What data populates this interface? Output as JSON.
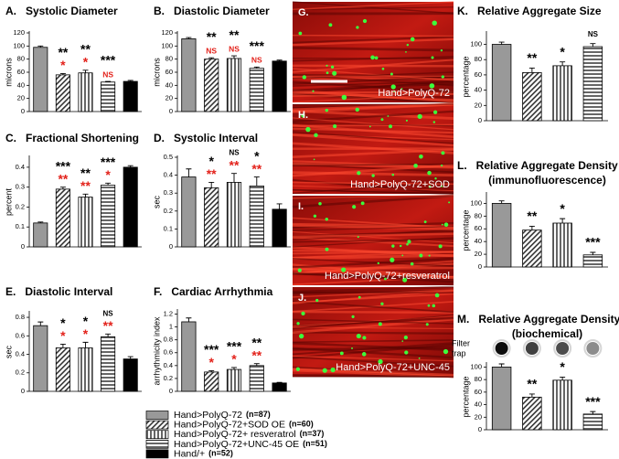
{
  "legend": [
    {
      "name": "Hand>PolyQ-72",
      "n": "(n=87)",
      "color": "#999999",
      "pattern": "solid"
    },
    {
      "name": "Hand>PolyQ-72+SOD  OE",
      "n": "(n=60)",
      "color": "#333333",
      "pattern": "diagonal"
    },
    {
      "name": "Hand>PolyQ-72+ resveratrol",
      "n": "(n=37)",
      "color": "#666666",
      "pattern": "vertical"
    },
    {
      "name": "Hand>PolyQ-72+UNC-45 OE",
      "n": "(n=51)",
      "color": "#666666",
      "pattern": "horizontal"
    },
    {
      "name": "Hand/+",
      "n": "(n=52)",
      "color": "#000000",
      "pattern": "solid"
    }
  ],
  "images": [
    {
      "letter": "G.",
      "label": "Hand>PolyQ-72"
    },
    {
      "letter": "H.",
      "label": "Hand>PolyQ-72+SOD"
    },
    {
      "letter": "I.",
      "label": "Hand>PolyQ-72+resveratrol"
    },
    {
      "letter": "J.",
      "label": "Hand>PolyQ-72+UNC-45"
    }
  ],
  "chart_data": [
    {
      "type": "bar",
      "letter": "A.",
      "title": "Systolic Diameter",
      "ylabel": "microns",
      "ylim": [
        0,
        120
      ],
      "yticks": [
        0,
        20,
        40,
        60,
        80,
        100,
        120
      ],
      "values": [
        98,
        56,
        59,
        45,
        46
      ],
      "errors": [
        2,
        2,
        4,
        1,
        1.5
      ],
      "sig_black": [
        null,
        "**",
        "**",
        "***",
        null
      ],
      "sig_red": [
        null,
        "*",
        "*",
        "NS",
        null
      ]
    },
    {
      "type": "bar",
      "letter": "B.",
      "title": "Diastolic Diameter",
      "ylabel": "microns",
      "ylim": [
        0,
        120
      ],
      "yticks": [
        0,
        20,
        40,
        60,
        80,
        100,
        120
      ],
      "values": [
        111,
        80,
        81,
        66,
        77
      ],
      "errors": [
        2,
        2,
        4,
        2,
        1.5
      ],
      "sig_black": [
        null,
        "**",
        "**",
        "***",
        null
      ],
      "sig_red": [
        null,
        "NS",
        "NS",
        "NS",
        null
      ]
    },
    {
      "type": "bar",
      "letter": "C.",
      "title": "Fractional Shortening",
      "ylabel": "percent",
      "ylim": [
        0,
        0.45
      ],
      "yticks": [
        0,
        0.1,
        0.2,
        0.3,
        0.4
      ],
      "values": [
        0.12,
        0.29,
        0.25,
        0.31,
        0.4
      ],
      "errors": [
        0.005,
        0.01,
        0.015,
        0.01,
        0.008
      ],
      "sig_black": [
        null,
        "***",
        "**",
        "***",
        null
      ],
      "sig_red": [
        null,
        "**",
        "**",
        "*",
        null
      ]
    },
    {
      "type": "bar",
      "letter": "D.",
      "title": "Systolic Interval",
      "ylabel": "sec",
      "ylim": [
        0,
        0.5
      ],
      "yticks": [
        0,
        0.1,
        0.2,
        0.3,
        0.4,
        0.5
      ],
      "values": [
        0.39,
        0.33,
        0.36,
        0.34,
        0.21
      ],
      "errors": [
        0.045,
        0.03,
        0.05,
        0.05,
        0.03
      ],
      "sig_black": [
        null,
        "*",
        "NS",
        "*",
        null
      ],
      "sig_red": [
        null,
        "**",
        "**",
        "**",
        null
      ]
    },
    {
      "type": "bar",
      "letter": "E.",
      "title": "Diastolic Interval",
      "ylabel": "sec",
      "ylim": [
        0,
        0.85
      ],
      "yticks": [
        0,
        0.2,
        0.4,
        0.6,
        0.8
      ],
      "values": [
        0.71,
        0.47,
        0.47,
        0.59,
        0.35
      ],
      "errors": [
        0.04,
        0.04,
        0.06,
        0.03,
        0.025
      ],
      "sig_black": [
        null,
        "*",
        "*",
        "NS",
        null
      ],
      "sig_red": [
        null,
        "*",
        "*",
        "**",
        null
      ]
    },
    {
      "type": "bar",
      "letter": "F.",
      "title": "Cardiac Arrhythmia",
      "ylabel": "arrhythmicity index",
      "ylim": [
        0,
        1.25
      ],
      "yticks": [
        0,
        0.2,
        0.4,
        0.6,
        0.8,
        1,
        1.2
      ],
      "values": [
        1.08,
        0.3,
        0.34,
        0.4,
        0.13
      ],
      "errors": [
        0.06,
        0.02,
        0.03,
        0.03,
        0.01
      ],
      "sig_black": [
        null,
        "***",
        "***",
        "**",
        null
      ],
      "sig_red": [
        null,
        "*",
        "*",
        "**",
        null
      ]
    },
    {
      "type": "bar",
      "letter": "K.",
      "title": "Relative Aggregate Size",
      "ylabel": "percentage",
      "ylim": [
        0,
        115
      ],
      "yticks": [
        0,
        20,
        40,
        60,
        80,
        100
      ],
      "values": [
        100,
        63,
        72,
        97
      ],
      "errors": [
        3,
        6,
        5,
        4
      ],
      "sig_black": [
        null,
        "**",
        "*",
        "NS"
      ]
    },
    {
      "type": "bar",
      "letter": "L.",
      "title": "Relative Aggregate Density",
      "subtitle": "(immunofluorescence)",
      "ylabel": "percentage",
      "ylim": [
        0,
        115
      ],
      "yticks": [
        0,
        20,
        40,
        60,
        80,
        100
      ],
      "values": [
        100,
        58,
        69,
        19
      ],
      "errors": [
        4,
        6,
        7,
        4
      ],
      "sig_black": [
        null,
        "**",
        "*",
        "***"
      ]
    },
    {
      "type": "bar",
      "letter": "M.",
      "title": "Relative Aggregate Density",
      "subtitle": "(biochemical)",
      "ylabel": "percentage",
      "ylim": [
        0,
        105
      ],
      "yticks": [
        0,
        20,
        40,
        60,
        80,
        100
      ],
      "filter_trap_label": [
        "Filter",
        "trap"
      ],
      "values": [
        100,
        52,
        79,
        25
      ],
      "errors": [
        5,
        5,
        5,
        4
      ],
      "sig_black": [
        null,
        "**",
        "*",
        "***"
      ]
    }
  ]
}
